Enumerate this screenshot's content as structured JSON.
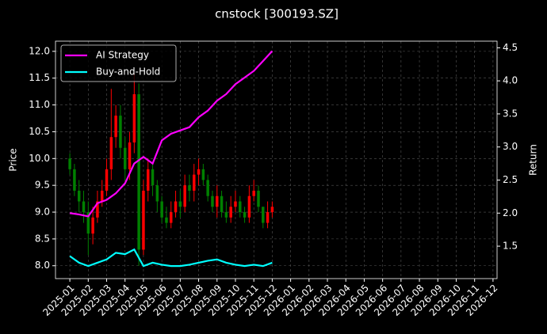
{
  "chart_data": {
    "type": "candlestick",
    "title": "cnstock [300193.SZ]",
    "ylabel": "Price",
    "y2label": "Return",
    "up_color": "#ff0000",
    "down_color": "#008000",
    "grid": true,
    "legend": "upper left",
    "xlim": [
      -0.78,
      23.22
    ],
    "xticks": [
      {
        "value": 0,
        "label": "2025-01"
      },
      {
        "value": 1,
        "label": "2025-02"
      },
      {
        "value": 2,
        "label": "2025-03"
      },
      {
        "value": 3,
        "label": "2025-04"
      },
      {
        "value": 4,
        "label": "2025-05"
      },
      {
        "value": 5,
        "label": "2025-06"
      },
      {
        "value": 6,
        "label": "2025-07"
      },
      {
        "value": 7,
        "label": "2025-08"
      },
      {
        "value": 8,
        "label": "2025-09"
      },
      {
        "value": 9,
        "label": "2025-10"
      },
      {
        "value": 10,
        "label": "2025-11"
      },
      {
        "value": 11,
        "label": "2025-12"
      },
      {
        "value": 12,
        "label": "2026-01"
      },
      {
        "value": 13,
        "label": "2026-02"
      },
      {
        "value": 14,
        "label": "2026-03"
      },
      {
        "value": 15,
        "label": "2026-04"
      },
      {
        "value": 16,
        "label": "2026-05"
      },
      {
        "value": 17,
        "label": "2026-06"
      },
      {
        "value": 18,
        "label": "2026-07"
      },
      {
        "value": 19,
        "label": "2026-08"
      },
      {
        "value": 20,
        "label": "2026-09"
      },
      {
        "value": 21,
        "label": "2026-10"
      },
      {
        "value": 22,
        "label": "2026-11"
      },
      {
        "value": 23,
        "label": "2026-12"
      }
    ],
    "ylim": [
      7.76,
      12.19
    ],
    "yticks": [
      {
        "value": 8,
        "label": "8.0"
      },
      8.5,
      {
        "value": 9,
        "label": "9.0"
      },
      9.5,
      {
        "value": 10,
        "label": "10.0"
      },
      10.5,
      {
        "value": 11,
        "label": "11.0"
      },
      11.5,
      {
        "value": 12,
        "label": "12.0"
      }
    ],
    "y2lim": [
      1.01,
      4.6
    ],
    "y2ticks": [
      1.5,
      {
        "value": 2,
        "label": "2.0"
      },
      2.5,
      {
        "value": 3,
        "label": "3.0"
      },
      3.5,
      {
        "value": 4,
        "label": "4.0"
      },
      4.5
    ],
    "candles": {
      "x": [
        0,
        0.25,
        0.5,
        0.75,
        1,
        1.25,
        1.5,
        1.75,
        2,
        2.25,
        2.5,
        2.75,
        3,
        3.25,
        3.5,
        3.75,
        4,
        4.25,
        4.5,
        4.75,
        5,
        5.25,
        5.5,
        5.75,
        6,
        6.25,
        6.5,
        6.75,
        7,
        7.25,
        7.5,
        7.75,
        8,
        8.25,
        8.5,
        8.75,
        9,
        9.25,
        9.5,
        9.75,
        10,
        10.25,
        10.5,
        10.75,
        11
      ],
      "open": [
        10.0,
        9.8,
        9.4,
        9.2,
        9.0,
        8.6,
        8.9,
        9.2,
        9.4,
        9.8,
        10.4,
        10.8,
        10.2,
        9.8,
        10.3,
        11.2,
        8.3,
        9.4,
        9.8,
        9.5,
        9.2,
        8.9,
        8.8,
        9.0,
        9.2,
        9.1,
        9.5,
        9.4,
        9.7,
        9.8,
        9.6,
        9.3,
        9.1,
        9.3,
        9.0,
        8.9,
        9.1,
        9.2,
        9.0,
        8.9,
        9.3,
        9.4,
        9.1,
        8.8,
        9.0
      ],
      "close": [
        9.8,
        9.4,
        9.2,
        9.0,
        8.6,
        8.9,
        9.2,
        9.4,
        9.8,
        10.4,
        10.8,
        10.2,
        9.8,
        10.3,
        11.2,
        8.3,
        9.4,
        9.8,
        9.5,
        9.2,
        8.9,
        8.8,
        9.0,
        9.2,
        9.1,
        9.5,
        9.4,
        9.7,
        9.8,
        9.6,
        9.3,
        9.1,
        9.3,
        9.0,
        8.9,
        9.1,
        9.2,
        9.0,
        8.9,
        9.3,
        9.4,
        9.1,
        8.8,
        9.0,
        9.1
      ],
      "high": [
        10.1,
        9.9,
        9.6,
        9.4,
        9.2,
        9.1,
        9.4,
        9.6,
        10.0,
        11.3,
        11.0,
        11.0,
        10.4,
        10.5,
        11.6,
        11.4,
        9.6,
        10.0,
        9.9,
        9.6,
        9.3,
        9.1,
        9.2,
        9.4,
        9.4,
        9.7,
        9.7,
        9.9,
        10.0,
        9.9,
        9.7,
        9.4,
        9.5,
        9.4,
        9.2,
        9.3,
        9.4,
        9.3,
        9.1,
        9.5,
        9.6,
        9.5,
        9.1,
        9.2,
        9.2
      ],
      "low": [
        9.7,
        9.3,
        9.0,
        8.8,
        8.2,
        8.4,
        8.8,
        9.1,
        9.3,
        9.6,
        10.2,
        10.0,
        9.6,
        9.6,
        10.1,
        8.0,
        8.2,
        9.2,
        9.3,
        9.0,
        8.8,
        8.7,
        8.7,
        8.9,
        8.9,
        9.0,
        9.2,
        9.2,
        9.5,
        9.5,
        9.2,
        9.0,
        8.9,
        8.9,
        8.8,
        8.8,
        9.0,
        8.9,
        8.8,
        8.8,
        9.2,
        9.0,
        8.7,
        8.7,
        8.9
      ]
    },
    "x": [
      0,
      0.5,
      1,
      1.5,
      2,
      2.5,
      3,
      3.5,
      4,
      4.5,
      5,
      5.5,
      6,
      6.5,
      7,
      7.5,
      8,
      8.5,
      9,
      9.5,
      10,
      10.5,
      11
    ],
    "series": [
      {
        "name": "AI Strategy",
        "color": "#ff00ff",
        "axis": "y2",
        "values": [
          2.0,
          1.98,
          1.95,
          2.15,
          2.2,
          2.3,
          2.45,
          2.75,
          2.85,
          2.75,
          3.1,
          3.2,
          3.25,
          3.3,
          3.45,
          3.55,
          3.7,
          3.8,
          3.95,
          4.05,
          4.15,
          4.3,
          4.45
        ]
      },
      {
        "name": "Buy-and-Hold",
        "color": "#00ffff",
        "axis": "y2",
        "values": [
          1.35,
          1.25,
          1.2,
          1.25,
          1.3,
          1.4,
          1.38,
          1.45,
          1.2,
          1.25,
          1.22,
          1.2,
          1.2,
          1.22,
          1.25,
          1.28,
          1.3,
          1.25,
          1.22,
          1.2,
          1.22,
          1.2,
          1.25
        ]
      }
    ]
  }
}
